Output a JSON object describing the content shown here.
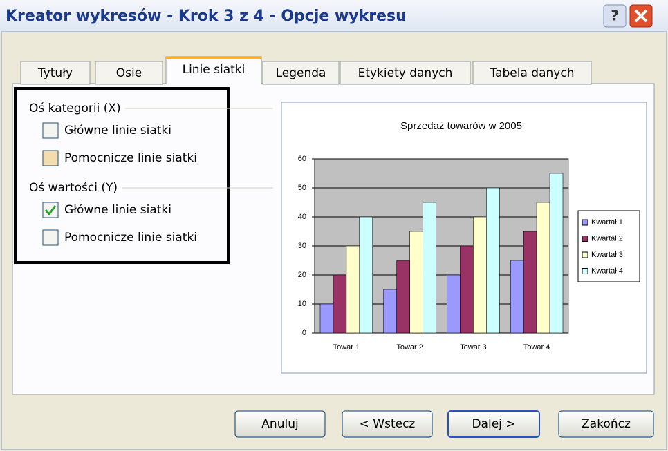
{
  "title": "Kreator wykresów - Krok 3 z 4 - Opcje wykresu",
  "tabs": [
    "Tytuły",
    "Osie",
    "Linie siatki",
    "Legenda",
    "Etykiety danych",
    "Tabela danych"
  ],
  "active_tab": 2,
  "groups": [
    {
      "label": "Oś kategorii (X)",
      "options": [
        {
          "label": "Główne linie siatki",
          "checked": false
        },
        {
          "label": "Pomocnicze linie siatki",
          "checked": false
        }
      ]
    },
    {
      "label": "Oś wartości (Y)",
      "options": [
        {
          "label": "Główne linie siatki",
          "checked": true
        },
        {
          "label": "Pomocnicze linie siatki",
          "checked": false
        }
      ]
    }
  ],
  "buttons": [
    "Anuluj",
    "< Wstecz",
    "Dalej >",
    "Zakończ"
  ],
  "chart_data": {
    "type": "bar",
    "title": "Sprzedaż towarów w 2005",
    "categories": [
      "Towar 1",
      "Towar 2",
      "Towar 3",
      "Towar 4"
    ],
    "series": [
      {
        "name": "Kwartał 1",
        "color": "#9999ff",
        "values": [
          10,
          15,
          20,
          25
        ]
      },
      {
        "name": "Kwartał 2",
        "color": "#993366",
        "values": [
          20,
          25,
          30,
          35
        ]
      },
      {
        "name": "Kwartał 3",
        "color": "#ffffcc",
        "values": [
          30,
          35,
          40,
          45
        ]
      },
      {
        "name": "Kwartał 4",
        "color": "#ccffff",
        "values": [
          40,
          45,
          50,
          55
        ]
      }
    ],
    "ylim": [
      0,
      60
    ],
    "yticks": [
      0,
      10,
      20,
      30,
      40,
      50,
      60
    ],
    "grid": true,
    "legend": "right"
  }
}
